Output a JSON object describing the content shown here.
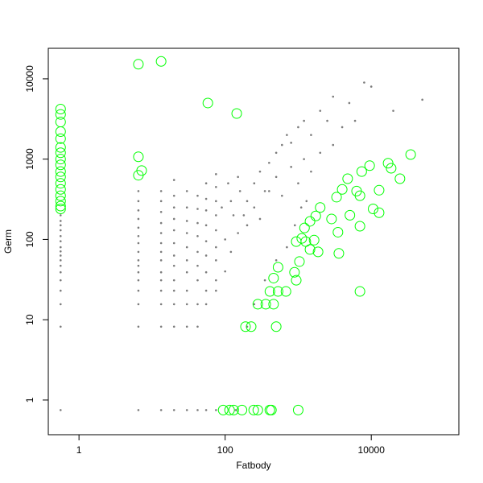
{
  "chart_data": {
    "type": "scatter",
    "xlabel": "Fatbody",
    "ylabel": "Germ",
    "xscale": "log",
    "yscale": "log",
    "grid": false,
    "xlim": [
      0.38,
      158000
    ],
    "ylim": [
      0.37,
      24000
    ],
    "xticks": [
      1,
      100,
      10000
    ],
    "yticks": [
      1,
      10,
      100,
      1000,
      10000
    ],
    "series": [
      {
        "color": "#444444",
        "marker": "dot",
        "x": [
          0.56,
          0.56,
          0.56,
          0.56,
          0.56,
          0.56,
          0.56,
          0.56,
          0.56,
          0.56,
          0.56,
          0.56,
          0.56,
          0.56,
          0.56,
          0.56,
          0.56,
          6.5,
          6.5,
          6.5,
          6.5,
          6.5,
          6.5,
          6.5,
          6.5,
          6.5,
          6.5,
          6.5,
          6.5,
          6.5,
          6.5,
          6.5,
          6.5,
          13.3,
          13.3,
          13.3,
          13.3,
          13.3,
          13.3,
          13.3,
          13.3,
          13.3,
          13.3,
          13.3,
          13.3,
          13.3,
          13.3,
          20,
          20,
          20,
          20,
          20,
          20,
          20,
          20,
          20,
          20,
          20,
          20,
          20,
          30,
          30,
          30,
          30,
          30,
          30,
          30,
          30,
          30,
          30,
          30,
          42,
          42,
          42,
          42,
          42,
          42,
          42,
          42,
          42,
          42,
          55,
          55,
          55,
          55,
          55,
          55,
          55,
          55,
          55,
          55,
          75,
          75,
          75,
          75,
          75,
          75,
          75,
          75,
          75,
          75,
          100,
          120,
          150,
          180,
          200,
          250,
          300,
          350,
          400,
          500,
          600,
          700,
          800,
          1000,
          1200,
          1500,
          2000,
          2500,
          3000,
          5000,
          8000,
          10000,
          20000,
          50000,
          120,
          150,
          200,
          250,
          300,
          400,
          500,
          600,
          800,
          1000,
          1200,
          1500,
          2000,
          3000,
          4000,
          6000,
          100,
          130,
          160,
          90,
          110,
          140,
          200,
          250,
          350,
          500,
          700,
          900,
          1100,
          1300
        ],
        "values": [
          0.75,
          8.2,
          15.6,
          23,
          31,
          39,
          47,
          55,
          63,
          71,
          80,
          95,
          110,
          130,
          150,
          170,
          200,
          0.75,
          8.2,
          15.6,
          23,
          31,
          39,
          47,
          55,
          70,
          90,
          110,
          140,
          180,
          230,
          300,
          400,
          0.75,
          8.2,
          15.6,
          23,
          31,
          39,
          55,
          70,
          90,
          120,
          160,
          220,
          300,
          400,
          0.75,
          8.2,
          15.6,
          23,
          31,
          47,
          63,
          90,
          130,
          180,
          250,
          350,
          550,
          0.75,
          8.2,
          15.6,
          23,
          39,
          55,
          80,
          120,
          170,
          250,
          400,
          0.75,
          8.2,
          15.6,
          31,
          47,
          70,
          110,
          160,
          240,
          350,
          0.75,
          15.6,
          23,
          39,
          63,
          95,
          150,
          230,
          320,
          500,
          0.75,
          23,
          31,
          55,
          80,
          130,
          200,
          300,
          450,
          650,
          40,
          70,
          120,
          200,
          300,
          500,
          700,
          400,
          900,
          1200,
          1500,
          2000,
          1600,
          2500,
          3000,
          2000,
          4000,
          3000,
          6000,
          5000,
          9000,
          8000,
          4000,
          5500,
          300,
          600,
          150,
          250,
          180,
          400,
          600,
          350,
          800,
          500,
          1000,
          700,
          1200,
          1500,
          2500,
          3000,
          100,
          200,
          400,
          250,
          500,
          0.75,
          8.2,
          15.6,
          31,
          55,
          80,
          150,
          250,
          300
        ]
      },
      {
        "color": "#00ff00",
        "marker": "ring",
        "x": [
          0.56,
          0.56,
          0.56,
          0.56,
          0.56,
          0.56,
          0.56,
          0.56,
          0.56,
          0.56,
          0.56,
          0.56,
          0.56,
          0.56,
          0.56,
          0.56,
          0.56,
          6.5,
          13.3,
          6.5,
          6.5,
          7.2,
          58,
          144,
          34600,
          17000,
          18700,
          24700,
          12800,
          10600,
          12800,
          9500,
          7400,
          94,
          115,
          131,
          170,
          246,
          280,
          409,
          430,
          1000,
          190,
          227,
          500,
          280,
          360,
          460,
          410,
          530,
          680,
          460,
          530,
          940,
          890,
          1040,
          940,
          1120,
          1270,
          1650,
          1220,
          1450,
          1740,
          2000,
          1450,
          1870,
          2860,
          3500,
          3600,
          3350,
          4000,
          4750,
          7000,
          7000,
          7000,
          6300,
          5100
        ],
        "values": [
          4200,
          3600,
          2900,
          2200,
          1800,
          1400,
          1200,
          1000,
          850,
          700,
          600,
          500,
          420,
          350,
          300,
          260,
          240,
          15200,
          16500,
          1070,
          630,
          720,
          5000,
          3700,
          1140,
          890,
          770,
          570,
          410,
          240,
          215,
          830,
          700,
          0.75,
          0.75,
          0.75,
          0.75,
          0.75,
          0.75,
          0.75,
          0.75,
          0.75,
          8.2,
          8.2,
          8.2,
          15.6,
          15.6,
          15.6,
          22.5,
          22.5,
          22.5,
          33,
          45,
          31,
          39,
          53,
          94,
          103,
          94,
          98,
          139,
          168,
          196,
          250,
          75,
          70,
          180,
          123,
          67,
          336,
          420,
          570,
          22.5,
          146,
          350,
          400,
          200
        ]
      }
    ]
  }
}
